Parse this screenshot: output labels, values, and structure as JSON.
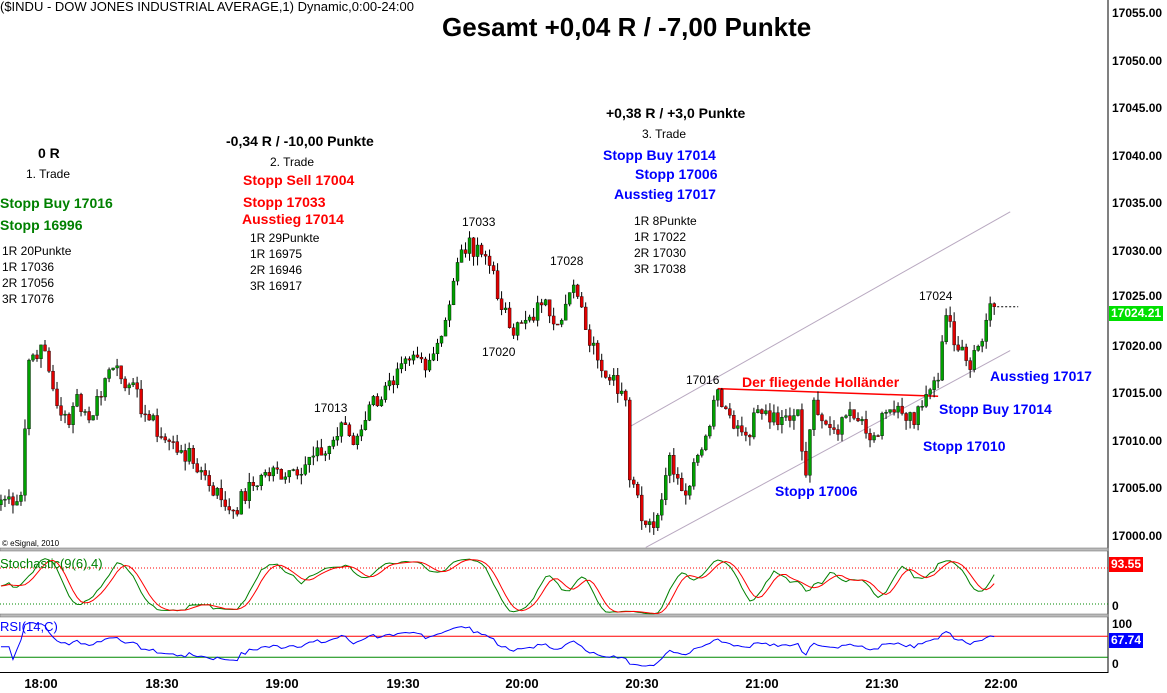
{
  "header": {
    "symbol_line": "($INDU - DOW JONES INDUSTRIAL AVERAGE,1) Dynamic,0:00-24:00",
    "title": "Gesamt +0,04 R / -7,00 Punkte",
    "copyright": "© eSignal, 2010"
  },
  "trade1": {
    "result": "0 R",
    "name": "1. Trade",
    "entry": "Stopp Buy 17016",
    "stop": "Stopp 16996",
    "targets": [
      "1R 20Punkte",
      "1R 17036",
      "2R 17056",
      "3R 17076"
    ]
  },
  "trade2": {
    "result": "-0,34 R / -10,00 Punkte",
    "name": "2. Trade",
    "entry": "Stopp Sell 17004",
    "stop": "Stopp 17033",
    "exit": "Ausstieg 17014",
    "targets": [
      "1R 29Punkte",
      "1R 16975",
      "2R 16946",
      "3R 16917"
    ]
  },
  "trade3": {
    "result": "+0,38 R / +3,0 Punkte",
    "name": "3. Trade",
    "entry": "Stopp Buy 17014",
    "stop": "Stopp 17006",
    "exit": "Ausstieg 17017",
    "targets": [
      "1R 8Punkte",
      "1R 17022",
      "2R 17030",
      "3R 17038"
    ]
  },
  "chart_labels": {
    "p17033": "17033",
    "p17028": "17028",
    "p17020": "17020",
    "p17013": "17013",
    "p17016": "17016",
    "p17024": "17024",
    "pattern": "Der fliegende Holländer",
    "stopp_17006": "Stopp 17006",
    "stopp_buy_17014": "Stopp Buy 17014",
    "stopp_17010": "Stopp 17010",
    "ausstieg_17017": "Ausstieg 17017"
  },
  "price_axis": [
    "17055.00",
    "17050.00",
    "17045.00",
    "17040.00",
    "17035.00",
    "17030.00",
    "17025.00",
    "17020.00",
    "17015.00",
    "17010.00",
    "17005.00",
    "17000.00"
  ],
  "time_axis": [
    "18:00",
    "18:30",
    "19:00",
    "19:30",
    "20:00",
    "20:30",
    "21:00",
    "21:30",
    "22:00"
  ],
  "last_price": "17024.21",
  "stochastic": {
    "label": "Stochastic(9(6),4)",
    "value": "93.55",
    "zero": "0"
  },
  "rsi": {
    "label": "RSI(14,C)",
    "value": "67.74",
    "hundred": "100",
    "zero": "0"
  },
  "colors": {
    "up": "#00a000",
    "down": "#e00000",
    "stoch_k": "#008000",
    "stoch_d": "#ff0000",
    "rsi": "#0000ff",
    "last_price_bg": "#00e000"
  },
  "chart_data": {
    "type": "candlestick",
    "title": "Gesamt +0,04 R / -7,00 Punkte",
    "interval": "1 minute",
    "ylim": [
      16998,
      17057
    ],
    "price_path": [
      [
        "17:50",
        17003.9
      ],
      [
        "17:55",
        17004.4
      ],
      [
        "17:57",
        17018.6
      ],
      [
        "18:00",
        17020.2
      ],
      [
        "18:05",
        17012.8
      ],
      [
        "18:07",
        17011.8
      ],
      [
        "18:09",
        17015.0
      ],
      [
        "18:12",
        17012.3
      ],
      [
        "18:17",
        17017.6
      ],
      [
        "18:19",
        17018.0
      ],
      [
        "18:22",
        17016.0
      ],
      [
        "18:27",
        17012.3
      ],
      [
        "18:31",
        17010.2
      ],
      [
        "18:35",
        17009.1
      ],
      [
        "18:40",
        17007.0
      ],
      [
        "18:45",
        17003.9
      ],
      [
        "18:48",
        17002.8
      ],
      [
        "18:55",
        17006.5
      ],
      [
        "19:02",
        17007.0
      ],
      [
        "19:10",
        17008.6
      ],
      [
        "19:16",
        17011.8
      ],
      [
        "19:18",
        17009.7
      ],
      [
        "19:22",
        17013.9
      ],
      [
        "19:28",
        17016.0
      ],
      [
        "19:32",
        17018.6
      ],
      [
        "19:37",
        17018.6
      ],
      [
        "19:41",
        17022.8
      ],
      [
        "19:45",
        17030.2
      ],
      [
        "19:49",
        17030.7
      ],
      [
        "19:53",
        17028.0
      ],
      [
        "19:55",
        17023.9
      ],
      [
        "19:58",
        17021.2
      ],
      [
        "20:01",
        17022.8
      ],
      [
        "20:05",
        17024.4
      ],
      [
        "20:10",
        17022.8
      ],
      [
        "20:13",
        17026.5
      ],
      [
        "20:16",
        17021.8
      ],
      [
        "20:19",
        17018.6
      ],
      [
        "20:23",
        17017.0
      ],
      [
        "20:26",
        17014.4
      ],
      [
        "20:27",
        17006.0
      ],
      [
        "20:31",
        17001.3
      ],
      [
        "20:34",
        17002.3
      ],
      [
        "20:37",
        17008.6
      ],
      [
        "20:41",
        17004.4
      ],
      [
        "20:44",
        17008.6
      ],
      [
        "20:49",
        17015.5
      ],
      [
        "20:52",
        17012.8
      ],
      [
        "20:56",
        17010.7
      ],
      [
        "20:59",
        17013.4
      ],
      [
        "21:04",
        17011.8
      ],
      [
        "21:09",
        17013.4
      ],
      [
        "21:11",
        17006.5
      ],
      [
        "21:13",
        17014.4
      ],
      [
        "21:18",
        17011.3
      ],
      [
        "21:22",
        17013.4
      ],
      [
        "21:27",
        17010.2
      ],
      [
        "21:32",
        17013.4
      ],
      [
        "21:38",
        17011.8
      ],
      [
        "21:41",
        17015.0
      ],
      [
        "21:44",
        17016.5
      ],
      [
        "21:46",
        17023.3
      ],
      [
        "21:48",
        17020.2
      ],
      [
        "21:52",
        17017.6
      ],
      [
        "21:56",
        17022.8
      ],
      [
        "21:58",
        17024.21
      ]
    ],
    "channel": {
      "upper": [
        [
          "20:27",
          17011.6
        ],
        [
          "22:02",
          17034.2
        ]
      ],
      "lower": [
        [
          "20:31",
          16998.9
        ],
        [
          "22:02",
          17019.6
        ]
      ]
    },
    "pattern_line": [
      [
        "20:49",
        17015.6
      ],
      [
        "21:44",
        17014.8
      ]
    ]
  }
}
